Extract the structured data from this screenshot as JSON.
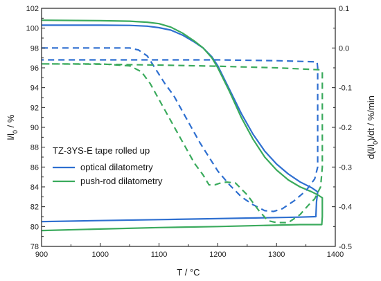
{
  "chart_data": {
    "type": "line",
    "xlabel": "T / °C",
    "ylabel_left": "l/l",
    "ylabel_left_sub": "0",
    "ylabel_left_unit": " / %",
    "ylabel_right_pre": "d(l/l",
    "ylabel_right_sub": "0",
    "ylabel_right_post": ")/dt / %/min",
    "xlim": [
      900,
      1400
    ],
    "ylim_left": [
      78,
      102
    ],
    "ylim_right": [
      -0.5,
      0.1
    ],
    "x_ticks": [
      900,
      1000,
      1100,
      1200,
      1300,
      1400
    ],
    "y_left_ticks": [
      78,
      80,
      82,
      84,
      86,
      88,
      90,
      92,
      94,
      96,
      98,
      100,
      102
    ],
    "y_right_ticks": [
      -0.5,
      -0.4,
      -0.3,
      -0.2,
      -0.1,
      0.0,
      0.1
    ],
    "x_tick_labels": [
      "900",
      "1000",
      "1100",
      "1200",
      "1300",
      "1400"
    ],
    "y_left_tick_labels": [
      "78",
      "80",
      "82",
      "84",
      "86",
      "88",
      "90",
      "92",
      "94",
      "96",
      "98",
      "100",
      "102"
    ],
    "y_right_tick_labels": [
      "-0.5",
      "-0.4",
      "-0.3",
      "-0.2",
      "-0.1",
      "0.0",
      "0.1"
    ],
    "legend_title": "TZ-3YS-E tape rolled up",
    "legend_placement": "center-left",
    "grid": false,
    "series": [
      {
        "name": "optical dilatometry",
        "color": "#2e6fd0",
        "style": "solid",
        "axis": "left",
        "points": [
          [
            900,
            100.3
          ],
          [
            1000,
            100.3
          ],
          [
            1050,
            100.28
          ],
          [
            1080,
            100.2
          ],
          [
            1100,
            100.05
          ],
          [
            1120,
            99.8
          ],
          [
            1140,
            99.3
          ],
          [
            1160,
            98.6
          ],
          [
            1175,
            98.0
          ],
          [
            1190,
            97.1
          ],
          [
            1200,
            96.2
          ],
          [
            1210,
            95.0
          ],
          [
            1220,
            93.8
          ],
          [
            1240,
            91.4
          ],
          [
            1260,
            89.3
          ],
          [
            1280,
            87.6
          ],
          [
            1300,
            86.3
          ],
          [
            1320,
            85.3
          ],
          [
            1340,
            84.5
          ],
          [
            1360,
            83.9
          ],
          [
            1370,
            83.5
          ],
          [
            1368,
            82.5
          ],
          [
            1367,
            81.0
          ],
          [
            1340,
            80.95
          ],
          [
            1200,
            80.8
          ],
          [
            1100,
            80.7
          ],
          [
            1000,
            80.6
          ],
          [
            900,
            80.5
          ]
        ]
      },
      {
        "name": "push-rod dilatometry",
        "color": "#3aaa5c",
        "style": "solid",
        "axis": "left",
        "points": [
          [
            900,
            100.8
          ],
          [
            1000,
            100.75
          ],
          [
            1050,
            100.7
          ],
          [
            1080,
            100.6
          ],
          [
            1100,
            100.45
          ],
          [
            1120,
            100.1
          ],
          [
            1140,
            99.5
          ],
          [
            1160,
            98.7
          ],
          [
            1175,
            98.0
          ],
          [
            1190,
            97.0
          ],
          [
            1200,
            96.0
          ],
          [
            1210,
            94.8
          ],
          [
            1220,
            93.6
          ],
          [
            1240,
            91.0
          ],
          [
            1260,
            88.8
          ],
          [
            1280,
            87.0
          ],
          [
            1300,
            85.7
          ],
          [
            1320,
            84.7
          ],
          [
            1340,
            84.0
          ],
          [
            1360,
            83.5
          ],
          [
            1370,
            83.2
          ],
          [
            1378,
            82.9
          ],
          [
            1378,
            81.0
          ],
          [
            1377,
            80.2
          ],
          [
            1340,
            80.2
          ],
          [
            1200,
            80.0
          ],
          [
            1100,
            79.9
          ],
          [
            1000,
            79.75
          ],
          [
            900,
            79.6
          ]
        ]
      },
      {
        "name": "optical dilatometry rate",
        "color": "#2e6fd0",
        "style": "dashed",
        "axis": "right",
        "points": [
          [
            900,
            0.0
          ],
          [
            1000,
            0.0
          ],
          [
            1050,
            0.0
          ],
          [
            1065,
            -0.005
          ],
          [
            1080,
            -0.02
          ],
          [
            1095,
            -0.055
          ],
          [
            1110,
            -0.09
          ],
          [
            1125,
            -0.12
          ],
          [
            1140,
            -0.16
          ],
          [
            1155,
            -0.2
          ],
          [
            1170,
            -0.24
          ],
          [
            1185,
            -0.275
          ],
          [
            1200,
            -0.31
          ],
          [
            1220,
            -0.345
          ],
          [
            1240,
            -0.375
          ],
          [
            1260,
            -0.395
          ],
          [
            1280,
            -0.41
          ],
          [
            1295,
            -0.412
          ],
          [
            1310,
            -0.405
          ],
          [
            1330,
            -0.385
          ],
          [
            1350,
            -0.36
          ],
          [
            1365,
            -0.33
          ],
          [
            1370,
            -0.3
          ],
          [
            1370,
            -0.22
          ],
          [
            1370,
            -0.1
          ],
          [
            1370,
            -0.05
          ],
          [
            1369,
            -0.035
          ],
          [
            1300,
            -0.032
          ],
          [
            1200,
            -0.03
          ],
          [
            1100,
            -0.03
          ],
          [
            1000,
            -0.03
          ],
          [
            900,
            -0.03
          ]
        ]
      },
      {
        "name": "push-rod dilatometry rate",
        "color": "#3aaa5c",
        "style": "dashed",
        "axis": "right",
        "points": [
          [
            900,
            -0.04
          ],
          [
            1000,
            -0.04
          ],
          [
            1050,
            -0.045
          ],
          [
            1070,
            -0.06
          ],
          [
            1085,
            -0.09
          ],
          [
            1100,
            -0.13
          ],
          [
            1115,
            -0.17
          ],
          [
            1130,
            -0.21
          ],
          [
            1145,
            -0.25
          ],
          [
            1160,
            -0.29
          ],
          [
            1175,
            -0.32
          ],
          [
            1185,
            -0.345
          ],
          [
            1195,
            -0.345
          ],
          [
            1205,
            -0.34
          ],
          [
            1215,
            -0.338
          ],
          [
            1230,
            -0.34
          ],
          [
            1250,
            -0.37
          ],
          [
            1270,
            -0.41
          ],
          [
            1285,
            -0.435
          ],
          [
            1300,
            -0.44
          ],
          [
            1320,
            -0.44
          ],
          [
            1340,
            -0.42
          ],
          [
            1355,
            -0.395
          ],
          [
            1365,
            -0.38
          ],
          [
            1375,
            -0.35
          ],
          [
            1378,
            -0.3
          ],
          [
            1378,
            -0.2
          ],
          [
            1378,
            -0.08
          ],
          [
            1378,
            -0.06
          ],
          [
            1375,
            -0.055
          ],
          [
            1300,
            -0.05
          ],
          [
            1200,
            -0.046
          ],
          [
            1100,
            -0.043
          ],
          [
            1000,
            -0.041
          ],
          [
            900,
            -0.04
          ]
        ]
      }
    ]
  }
}
